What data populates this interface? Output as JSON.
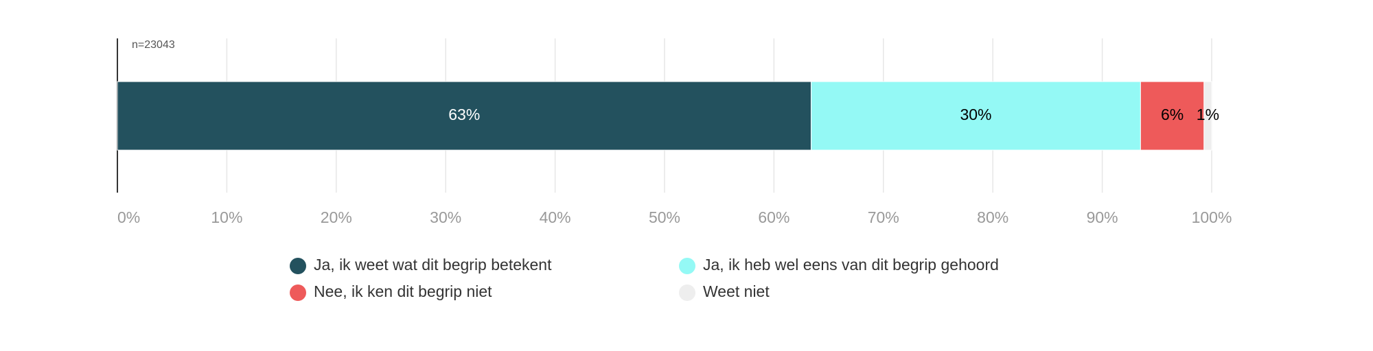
{
  "chart_data": {
    "type": "stacked-bar-horizontal",
    "annotation": "n=23043",
    "series": [
      {
        "name": "Ja, ik weet wat dit begrip betekent",
        "color": "#23515e",
        "values": [
          63.4
        ],
        "value_labels": [
          "63%"
        ]
      },
      {
        "name": "Ja, ik heb wel eens van dit begrip gehoord",
        "color": "#94f9f5",
        "values": [
          30.1
        ],
        "value_labels": [
          "30%"
        ]
      },
      {
        "name": "Nee, ik ken dit begrip niet",
        "color": "#ee5a5a",
        "values": [
          5.8
        ],
        "value_labels": [
          "6%"
        ]
      },
      {
        "name": "Weet niet",
        "color": "#eeeeee",
        "values": [
          0.7
        ],
        "value_labels": [
          "1%"
        ]
      }
    ],
    "xlim": [
      0,
      100
    ],
    "xticks": [
      {
        "value": 0,
        "label": "0%"
      },
      {
        "value": 10,
        "label": "10%"
      },
      {
        "value": 20,
        "label": "20%"
      },
      {
        "value": 30,
        "label": "30%"
      },
      {
        "value": 40,
        "label": "40%"
      },
      {
        "value": 50,
        "label": "50%"
      },
      {
        "value": 60,
        "label": "60%"
      },
      {
        "value": 70,
        "label": "70%"
      },
      {
        "value": 80,
        "label": "80%"
      },
      {
        "value": 90,
        "label": "90%"
      },
      {
        "value": 100,
        "label": "100%"
      }
    ],
    "grid": true
  }
}
